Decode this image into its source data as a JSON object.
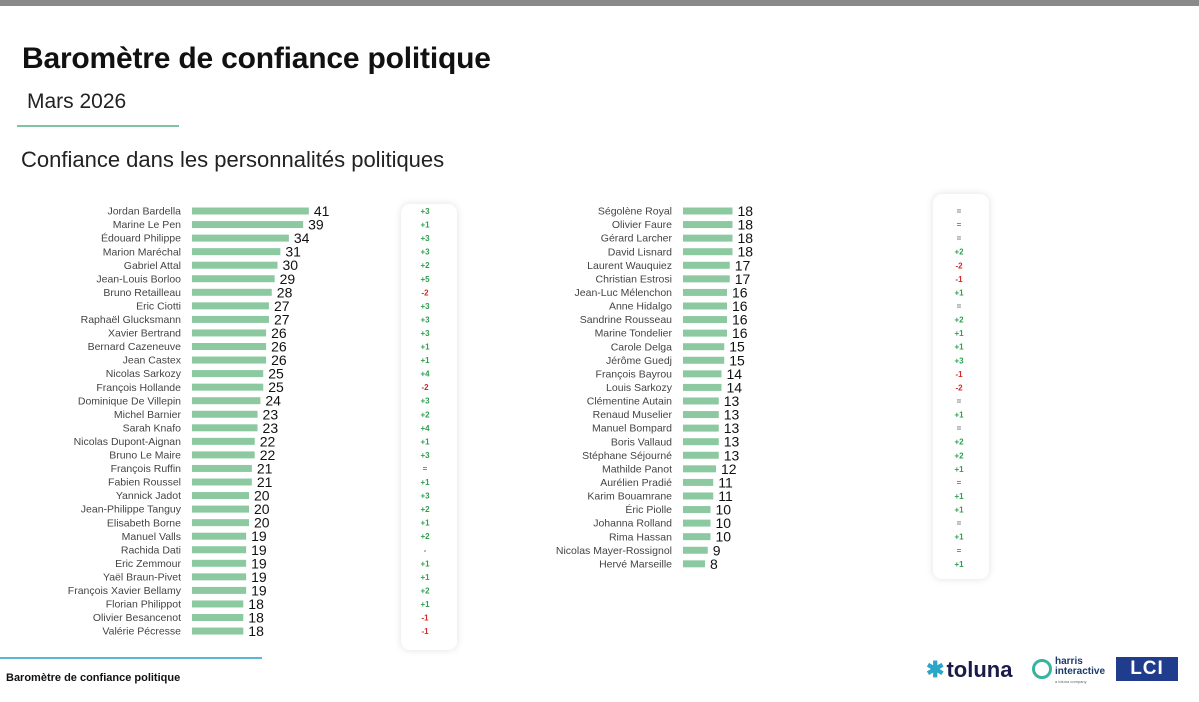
{
  "header": {
    "title": "Baromètre de confiance politique",
    "subtitle": "Mars 2026",
    "section": "Confiance dans les personnalités politiques"
  },
  "footer": {
    "text": "Baromètre de confiance politique"
  },
  "logos": {
    "toluna": "toluna",
    "harris_line1": "harris",
    "harris_line2": "interactive",
    "harris_sub": "a toluna company",
    "lci": "LCI"
  },
  "colors": {
    "bar": "#8dc9a0",
    "positive": "#2e9e4f",
    "negative": "#d62828",
    "neutral": "#7a7a7a"
  },
  "chart_data": [
    {
      "type": "bar",
      "orientation": "horizontal",
      "categories": [
        "Jordan Bardella",
        "Marine Le Pen",
        "Édouard Philippe",
        "Marion Maréchal",
        "Gabriel Attal",
        "Jean-Louis Borloo",
        "Bruno Retailleau",
        "Eric Ciotti",
        "Raphaël Glucksmann",
        "Xavier Bertrand",
        "Bernard Cazeneuve",
        "Jean Castex",
        "Nicolas Sarkozy",
        "François Hollande",
        "Dominique De Villepin",
        "Michel Barnier",
        "Sarah Knafo",
        "Nicolas Dupont-Aignan",
        "Bruno Le Maire",
        "François Ruffin",
        "Fabien Roussel",
        "Yannick Jadot",
        "Jean-Philippe Tanguy",
        "Elisabeth Borne",
        "Manuel Valls",
        "Rachida Dati",
        "Eric Zemmour",
        "Yaël Braun-Pivet",
        "François Xavier Bellamy",
        "Florian Philippot",
        "Olivier Besancenot",
        "Valérie Pécresse"
      ],
      "values": [
        41,
        39,
        34,
        31,
        30,
        29,
        28,
        27,
        27,
        26,
        26,
        26,
        25,
        25,
        24,
        23,
        23,
        22,
        22,
        21,
        21,
        20,
        20,
        20,
        19,
        19,
        19,
        19,
        19,
        18,
        18,
        18
      ],
      "changes": [
        "+3",
        "+1",
        "+3",
        "+3",
        "+2",
        "+5",
        "-2",
        "+3",
        "+3",
        "+3",
        "+1",
        "+1",
        "+4",
        "-2",
        "+3",
        "+2",
        "+4",
        "+1",
        "+3",
        "=",
        "+1",
        "+3",
        "+2",
        "+1",
        "+2",
        "-",
        "+1",
        "+1",
        "+2",
        "+1",
        "-1",
        "-1"
      ]
    },
    {
      "type": "bar",
      "orientation": "horizontal",
      "categories": [
        "Ségolène Royal",
        "Olivier Faure",
        "Gérard Larcher",
        "David Lisnard",
        "Laurent Wauquiez",
        "Christian Estrosi",
        "Jean-Luc Mélenchon",
        "Anne Hidalgo",
        "Sandrine Rousseau",
        "Marine Tondelier",
        "Carole Delga",
        "Jérôme Guedj",
        "François Bayrou",
        "Louis Sarkozy",
        "Clémentine Autain",
        "Renaud Muselier",
        "Manuel Bompard",
        "Boris Vallaud",
        "Stéphane Séjourné",
        "Mathilde Panot",
        "Aurélien Pradié",
        "Karim Bouamrane",
        "Éric Piolle",
        "Johanna Rolland",
        "Rima Hassan",
        "Nicolas Mayer-Rossignol",
        "Hervé Marseille"
      ],
      "values": [
        18,
        18,
        18,
        18,
        17,
        17,
        16,
        16,
        16,
        16,
        15,
        15,
        14,
        14,
        13,
        13,
        13,
        13,
        13,
        12,
        11,
        11,
        10,
        10,
        10,
        9,
        8
      ],
      "changes": [
        "=",
        "=",
        "=",
        "+2",
        "-2",
        "-1",
        "+1",
        "=",
        "+2",
        "+1",
        "+1",
        "+3",
        "-1",
        "-2",
        "=",
        "+1",
        "=",
        "+2",
        "+2",
        "+1",
        "=",
        "+1",
        "+1",
        "=",
        "+1",
        "=",
        "+1"
      ]
    }
  ]
}
